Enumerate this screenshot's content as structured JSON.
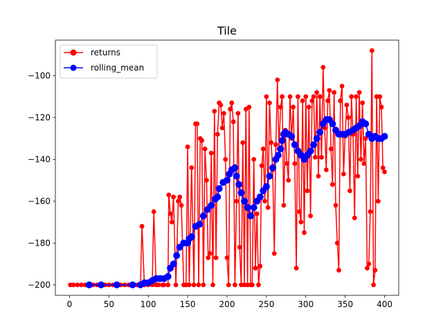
{
  "chart_data": {
    "type": "line",
    "title": "Tile",
    "xlabel": "",
    "ylabel": "",
    "xlim": [
      -18,
      418
    ],
    "ylim": [
      -205,
      -83
    ],
    "x_ticks": [
      0,
      50,
      100,
      150,
      200,
      250,
      300,
      350,
      400
    ],
    "y_ticks": [
      -200,
      -180,
      -160,
      -140,
      -120,
      -100
    ],
    "x_tick_labels": [
      "0",
      "50",
      "100",
      "150",
      "200",
      "250",
      "300",
      "350",
      "400"
    ],
    "y_tick_labels": [
      "−200",
      "−180",
      "−160",
      "−140",
      "−120",
      "−100"
    ],
    "grid": false,
    "legend_position": "upper left",
    "series": [
      {
        "name": "returns",
        "color": "#ff0000",
        "marker": "circle",
        "points": [
          [
            1,
            -200
          ],
          [
            5,
            -200
          ],
          [
            10,
            -200
          ],
          [
            15,
            -200
          ],
          [
            20,
            -200
          ],
          [
            25,
            -200
          ],
          [
            30,
            -200
          ],
          [
            35,
            -200
          ],
          [
            40,
            -200
          ],
          [
            45,
            -200
          ],
          [
            50,
            -200
          ],
          [
            55,
            -200
          ],
          [
            60,
            -200
          ],
          [
            65,
            -200
          ],
          [
            70,
            -200
          ],
          [
            75,
            -200
          ],
          [
            80,
            -200
          ],
          [
            85,
            -200
          ],
          [
            90,
            -200
          ],
          [
            92,
            -172
          ],
          [
            95,
            -200
          ],
          [
            100,
            -200
          ],
          [
            105,
            -200
          ],
          [
            107,
            -165
          ],
          [
            110,
            -200
          ],
          [
            113,
            -200
          ],
          [
            118,
            -200
          ],
          [
            120,
            -200
          ],
          [
            125,
            -200
          ],
          [
            126,
            -157
          ],
          [
            128,
            -166
          ],
          [
            130,
            -170
          ],
          [
            132,
            -158
          ],
          [
            135,
            -200
          ],
          [
            138,
            -160
          ],
          [
            140,
            -158
          ],
          [
            142,
            -162
          ],
          [
            145,
            -200
          ],
          [
            148,
            -200
          ],
          [
            150,
            -134
          ],
          [
            152,
            -200
          ],
          [
            155,
            -144
          ],
          [
            158,
            -200
          ],
          [
            160,
            -123
          ],
          [
            162,
            -123
          ],
          [
            164,
            -200
          ],
          [
            166,
            -130
          ],
          [
            168,
            -131
          ],
          [
            170,
            -200
          ],
          [
            172,
            -135
          ],
          [
            174,
            -150
          ],
          [
            176,
            -187
          ],
          [
            178,
            -185
          ],
          [
            180,
            -137
          ],
          [
            182,
            -200
          ],
          [
            184,
            -117
          ],
          [
            186,
            -187
          ],
          [
            188,
            -128
          ],
          [
            190,
            -113
          ],
          [
            192,
            -114
          ],
          [
            194,
            -125
          ],
          [
            196,
            -118
          ],
          [
            198,
            -140
          ],
          [
            200,
            -187
          ],
          [
            202,
            -200
          ],
          [
            204,
            -116
          ],
          [
            206,
            -113
          ],
          [
            208,
            -122
          ],
          [
            210,
            -200
          ],
          [
            212,
            -160
          ],
          [
            214,
            -118
          ],
          [
            216,
            -182
          ],
          [
            218,
            -200
          ],
          [
            220,
            -132
          ],
          [
            222,
            -200
          ],
          [
            224,
            -116
          ],
          [
            226,
            -200
          ],
          [
            228,
            -115
          ],
          [
            230,
            -200
          ],
          [
            232,
            -200
          ],
          [
            234,
            -140
          ],
          [
            236,
            -192
          ],
          [
            238,
            -166
          ],
          [
            240,
            -200
          ],
          [
            242,
            -191
          ],
          [
            244,
            -143
          ],
          [
            246,
            -135
          ],
          [
            248,
            -160
          ],
          [
            250,
            -110
          ],
          [
            252,
            -163
          ],
          [
            254,
            -113
          ],
          [
            256,
            -132
          ],
          [
            258,
            -145
          ],
          [
            260,
            -185
          ],
          [
            262,
            -133
          ],
          [
            264,
            -102
          ],
          [
            266,
            -135
          ],
          [
            268,
            -115
          ],
          [
            270,
            -110
          ],
          [
            272,
            -162
          ],
          [
            274,
            -126
          ],
          [
            276,
            -142
          ],
          [
            278,
            -150
          ],
          [
            280,
            -110
          ],
          [
            282,
            -130
          ],
          [
            284,
            -115
          ],
          [
            286,
            -142
          ],
          [
            288,
            -192
          ],
          [
            290,
            -110
          ],
          [
            292,
            -165
          ],
          [
            294,
            -170
          ],
          [
            296,
            -112
          ],
          [
            298,
            -175
          ],
          [
            300,
            -110
          ],
          [
            302,
            -155
          ],
          [
            304,
            -115
          ],
          [
            306,
            -167
          ],
          [
            308,
            -112
          ],
          [
            310,
            -110
          ],
          [
            312,
            -139
          ],
          [
            314,
            -108
          ],
          [
            316,
            -148
          ],
          [
            318,
            -110
          ],
          [
            320,
            -139
          ],
          [
            322,
            -96
          ],
          [
            324,
            -125
          ],
          [
            326,
            -145
          ],
          [
            328,
            -112
          ],
          [
            330,
            -107
          ],
          [
            332,
            -135
          ],
          [
            334,
            -152
          ],
          [
            336,
            -108
          ],
          [
            338,
            -162
          ],
          [
            340,
            -180
          ],
          [
            342,
            -193
          ],
          [
            344,
            -112
          ],
          [
            346,
            -105
          ],
          [
            348,
            -147
          ],
          [
            350,
            -129
          ],
          [
            352,
            -114
          ],
          [
            354,
            -120
          ],
          [
            356,
            -155
          ],
          [
            358,
            -110
          ],
          [
            360,
            -128
          ],
          [
            362,
            -168
          ],
          [
            364,
            -110
          ],
          [
            366,
            -148
          ],
          [
            368,
            -108
          ],
          [
            370,
            -140
          ],
          [
            372,
            -113
          ],
          [
            374,
            -142
          ],
          [
            376,
            -130
          ],
          [
            378,
            -192
          ],
          [
            380,
            -190
          ],
          [
            382,
            -165
          ],
          [
            384,
            -88
          ],
          [
            386,
            -200
          ],
          [
            388,
            -193
          ],
          [
            390,
            -110
          ],
          [
            392,
            -160
          ],
          [
            394,
            -110
          ],
          [
            396,
            -115
          ],
          [
            398,
            -144
          ],
          [
            400,
            -146
          ]
        ]
      },
      {
        "name": "rolling_mean",
        "color": "#0000ff",
        "marker": "circle",
        "points": [
          [
            25,
            -200
          ],
          [
            40,
            -200
          ],
          [
            60,
            -200
          ],
          [
            80,
            -200
          ],
          [
            90,
            -200
          ],
          [
            95,
            -199
          ],
          [
            100,
            -199
          ],
          [
            105,
            -198
          ],
          [
            110,
            -197
          ],
          [
            115,
            -197
          ],
          [
            120,
            -197
          ],
          [
            125,
            -196
          ],
          [
            128,
            -192
          ],
          [
            132,
            -190
          ],
          [
            136,
            -186
          ],
          [
            140,
            -182
          ],
          [
            145,
            -180
          ],
          [
            150,
            -180
          ],
          [
            152,
            -178
          ],
          [
            155,
            -177
          ],
          [
            160,
            -172
          ],
          [
            165,
            -171
          ],
          [
            170,
            -167
          ],
          [
            175,
            -164
          ],
          [
            180,
            -162
          ],
          [
            185,
            -159
          ],
          [
            188,
            -158
          ],
          [
            190,
            -154
          ],
          [
            195,
            -151
          ],
          [
            200,
            -150
          ],
          [
            203,
            -147
          ],
          [
            206,
            -145
          ],
          [
            210,
            -144
          ],
          [
            212,
            -148
          ],
          [
            215,
            -152
          ],
          [
            218,
            -156
          ],
          [
            222,
            -160
          ],
          [
            226,
            -163
          ],
          [
            230,
            -167
          ],
          [
            234,
            -163
          ],
          [
            238,
            -160
          ],
          [
            242,
            -158
          ],
          [
            246,
            -155
          ],
          [
            250,
            -153
          ],
          [
            254,
            -148
          ],
          [
            258,
            -144
          ],
          [
            262,
            -140
          ],
          [
            265,
            -138
          ],
          [
            268,
            -135
          ],
          [
            270,
            -131
          ],
          [
            272,
            -128
          ],
          [
            274,
            -127
          ],
          [
            278,
            -128
          ],
          [
            282,
            -129
          ],
          [
            286,
            -133
          ],
          [
            290,
            -136
          ],
          [
            294,
            -138
          ],
          [
            298,
            -140
          ],
          [
            302,
            -138
          ],
          [
            306,
            -136
          ],
          [
            310,
            -133
          ],
          [
            314,
            -130
          ],
          [
            318,
            -127
          ],
          [
            322,
            -123
          ],
          [
            326,
            -121
          ],
          [
            330,
            -121
          ],
          [
            334,
            -123
          ],
          [
            338,
            -126
          ],
          [
            342,
            -128
          ],
          [
            346,
            -128
          ],
          [
            350,
            -128
          ],
          [
            355,
            -127
          ],
          [
            360,
            -126
          ],
          [
            364,
            -125
          ],
          [
            368,
            -124
          ],
          [
            372,
            -122
          ],
          [
            376,
            -123
          ],
          [
            380,
            -128
          ],
          [
            384,
            -130
          ],
          [
            388,
            -129
          ],
          [
            392,
            -130
          ],
          [
            396,
            -130
          ],
          [
            400,
            -129
          ]
        ]
      }
    ]
  }
}
